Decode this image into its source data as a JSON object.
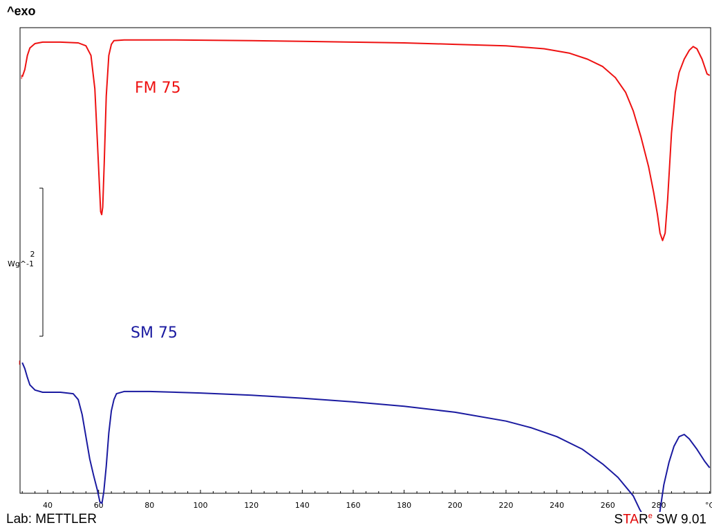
{
  "header": {
    "exo_label": "^exo"
  },
  "footer": {
    "lab_label": "Lab: METTLER",
    "software": {
      "s": "S",
      "t": "T",
      "a": "A",
      "r": "R",
      "e": "e",
      "version": " SW 9.01"
    }
  },
  "chart_data": {
    "type": "line",
    "xlabel": "°C",
    "ylabel": "",
    "xlim": [
      30,
      300
    ],
    "x_ticks": [
      40,
      60,
      80,
      100,
      120,
      140,
      160,
      180,
      200,
      220,
      240,
      260,
      280
    ],
    "x_minor_step": 5,
    "grid": false,
    "scale_bar": {
      "value": "2",
      "unit": "Wg^-1"
    },
    "series": [
      {
        "name": "FM 75",
        "color": "#ee1111",
        "points": [
          [
            30,
            -0.74
          ],
          [
            31,
            -0.64
          ],
          [
            32,
            -0.45
          ],
          [
            33,
            -0.35
          ],
          [
            35,
            -0.29
          ],
          [
            38,
            -0.27
          ],
          [
            45,
            -0.27
          ],
          [
            52,
            -0.28
          ],
          [
            55,
            -0.32
          ],
          [
            57,
            -0.45
          ],
          [
            58.5,
            -0.9
          ],
          [
            59.5,
            -1.6
          ],
          [
            60.3,
            -2.2
          ],
          [
            60.8,
            -2.56
          ],
          [
            61.2,
            -2.6
          ],
          [
            61.6,
            -2.5
          ],
          [
            62.2,
            -1.9
          ],
          [
            63,
            -1.0
          ],
          [
            64,
            -0.45
          ],
          [
            65,
            -0.3
          ],
          [
            66,
            -0.25
          ],
          [
            70,
            -0.24
          ],
          [
            90,
            -0.24
          ],
          [
            120,
            -0.25
          ],
          [
            140,
            -0.26
          ],
          [
            160,
            -0.27
          ],
          [
            180,
            -0.28
          ],
          [
            200,
            -0.3
          ],
          [
            220,
            -0.32
          ],
          [
            235,
            -0.36
          ],
          [
            245,
            -0.42
          ],
          [
            252,
            -0.5
          ],
          [
            258,
            -0.6
          ],
          [
            263,
            -0.75
          ],
          [
            267,
            -0.95
          ],
          [
            270,
            -1.2
          ],
          [
            273,
            -1.55
          ],
          [
            276,
            -1.95
          ],
          [
            278,
            -2.3
          ],
          [
            279.5,
            -2.6
          ],
          [
            280.5,
            -2.85
          ],
          [
            281.5,
            -2.95
          ],
          [
            282.5,
            -2.85
          ],
          [
            283.5,
            -2.4
          ],
          [
            285,
            -1.5
          ],
          [
            286.5,
            -0.95
          ],
          [
            288,
            -0.68
          ],
          [
            290,
            -0.5
          ],
          [
            292,
            -0.38
          ],
          [
            293.5,
            -0.33
          ],
          [
            295,
            -0.36
          ],
          [
            297,
            -0.5
          ],
          [
            299,
            -0.7
          ],
          [
            300,
            -0.72
          ]
        ]
      },
      {
        "name": "SM 75",
        "color": "#1a1aa0",
        "points": [
          [
            30,
            -4.6
          ],
          [
            31,
            -4.68
          ],
          [
            32,
            -4.8
          ],
          [
            33,
            -4.9
          ],
          [
            35,
            -4.97
          ],
          [
            38,
            -5.0
          ],
          [
            45,
            -5.0
          ],
          [
            50,
            -5.02
          ],
          [
            52,
            -5.1
          ],
          [
            53.5,
            -5.3
          ],
          [
            55,
            -5.6
          ],
          [
            56.5,
            -5.9
          ],
          [
            58,
            -6.12
          ],
          [
            59.5,
            -6.32
          ],
          [
            60.5,
            -6.48
          ],
          [
            61.3,
            -6.5
          ],
          [
            62,
            -6.35
          ],
          [
            63,
            -6.0
          ],
          [
            64,
            -5.55
          ],
          [
            65,
            -5.25
          ],
          [
            66,
            -5.1
          ],
          [
            67,
            -5.02
          ],
          [
            70,
            -4.99
          ],
          [
            80,
            -4.99
          ],
          [
            100,
            -5.01
          ],
          [
            120,
            -5.04
          ],
          [
            140,
            -5.08
          ],
          [
            160,
            -5.13
          ],
          [
            180,
            -5.19
          ],
          [
            200,
            -5.27
          ],
          [
            220,
            -5.39
          ],
          [
            230,
            -5.48
          ],
          [
            240,
            -5.6
          ],
          [
            250,
            -5.77
          ],
          [
            258,
            -5.97
          ],
          [
            264,
            -6.15
          ],
          [
            270,
            -6.4
          ],
          [
            272.5,
            -6.58
          ],
          [
            274.5,
            -6.7
          ],
          [
            276,
            -6.9
          ],
          [
            277,
            -7.06
          ],
          [
            278,
            -7.12
          ],
          [
            279,
            -6.98
          ],
          [
            280.5,
            -6.6
          ],
          [
            282,
            -6.25
          ],
          [
            284,
            -5.95
          ],
          [
            286,
            -5.73
          ],
          [
            288,
            -5.6
          ],
          [
            290,
            -5.57
          ],
          [
            292,
            -5.63
          ],
          [
            295,
            -5.77
          ],
          [
            298,
            -5.93
          ],
          [
            300,
            -6.02
          ]
        ]
      }
    ]
  }
}
